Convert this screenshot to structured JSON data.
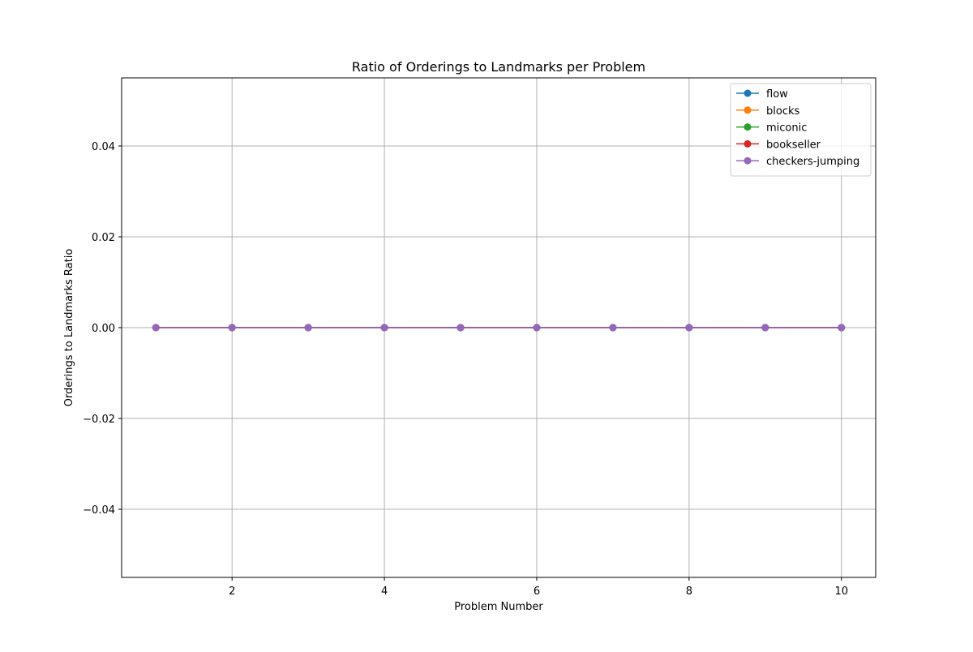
{
  "chart_data": {
    "type": "line",
    "title": "Ratio of Orderings to Landmarks per Problem",
    "xlabel": "Problem Number",
    "ylabel": "Orderings to Landmarks Ratio",
    "x": [
      1,
      2,
      3,
      4,
      5,
      6,
      7,
      8,
      9,
      10
    ],
    "xlim": [
      0.55,
      10.45
    ],
    "ylim": [
      -0.055,
      0.055
    ],
    "xticks": [
      2,
      4,
      6,
      8,
      10
    ],
    "xtick_labels": [
      "2",
      "4",
      "6",
      "8",
      "10"
    ],
    "yticks": [
      -0.04,
      -0.02,
      0.0,
      0.02,
      0.04
    ],
    "ytick_labels": [
      "−0.04",
      "−0.02",
      "0.00",
      "0.02",
      "0.04"
    ],
    "grid": true,
    "legend_position": "top-right",
    "series": [
      {
        "name": "flow",
        "color": "#1f77b4",
        "values": [
          0,
          0,
          0,
          0,
          0,
          0,
          0,
          0,
          0,
          0
        ]
      },
      {
        "name": "blocks",
        "color": "#ff7f0e",
        "values": [
          0,
          0,
          0,
          0,
          0,
          0,
          0,
          0,
          0,
          0
        ]
      },
      {
        "name": "miconic",
        "color": "#2ca02c",
        "values": [
          0,
          0,
          0,
          0,
          0,
          0,
          0,
          0,
          0,
          0
        ]
      },
      {
        "name": "bookseller",
        "color": "#d62728",
        "values": [
          0,
          0,
          0,
          0,
          0,
          0,
          0,
          0,
          0,
          0
        ]
      },
      {
        "name": "checkers-jumping",
        "color": "#9467bd",
        "values": [
          0,
          0,
          0,
          0,
          0,
          0,
          0,
          0,
          0,
          0
        ]
      }
    ]
  }
}
